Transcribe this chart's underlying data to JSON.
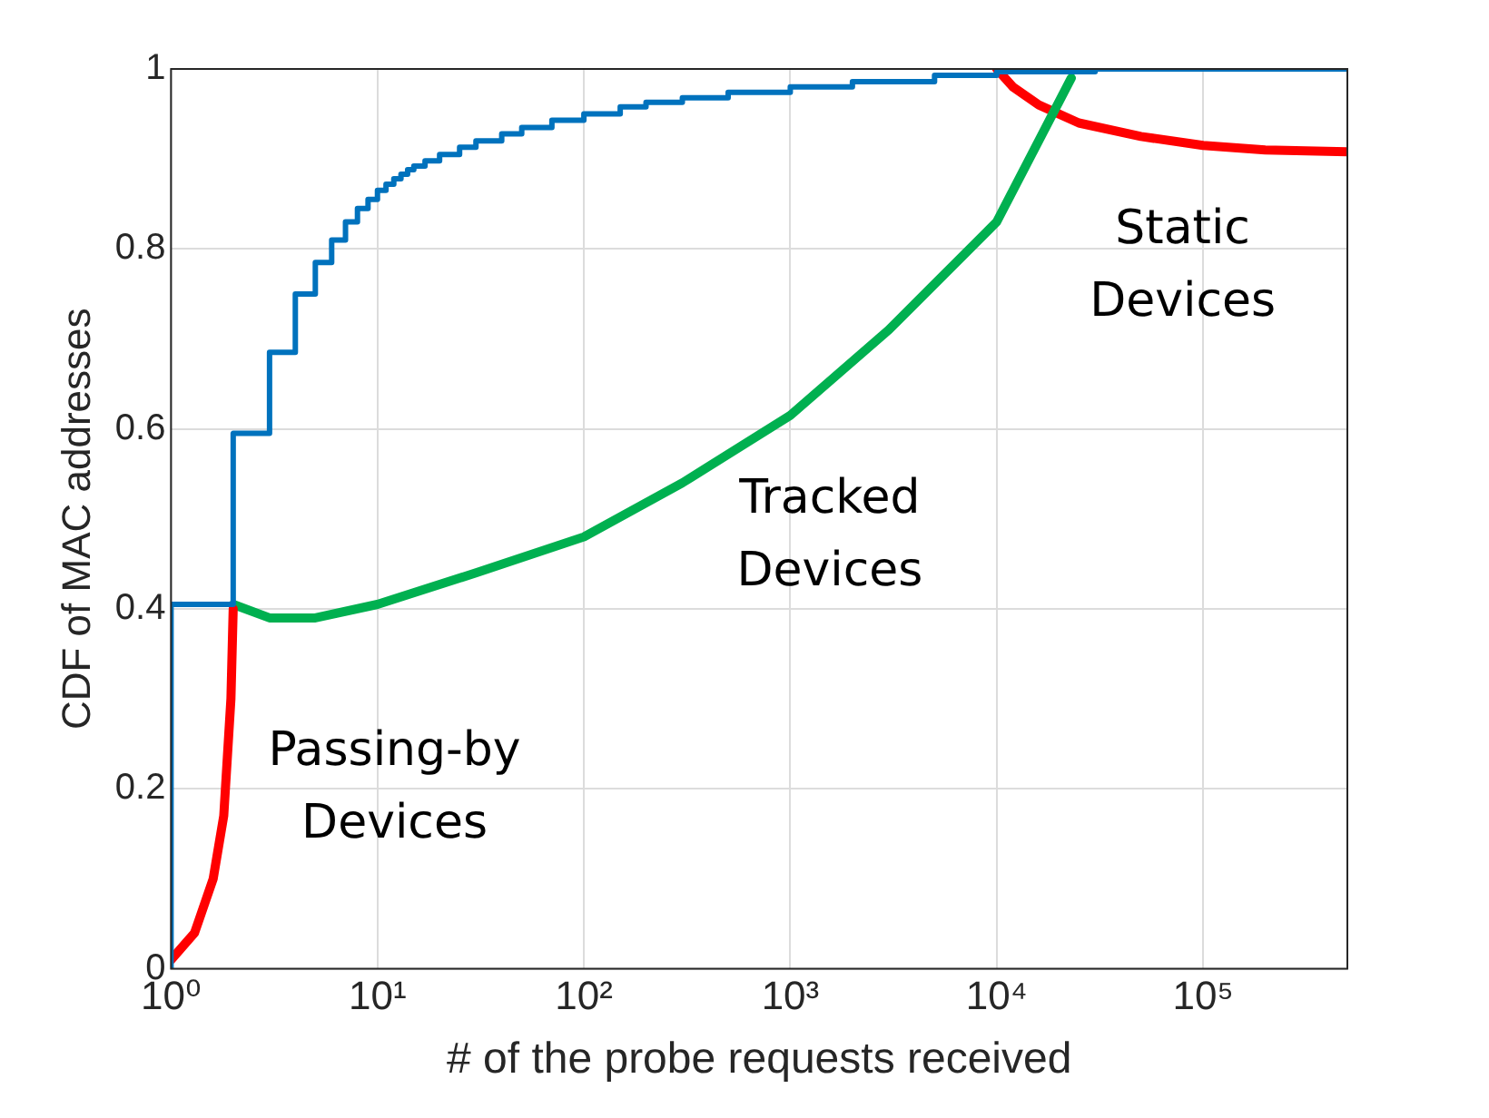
{
  "chart_data": {
    "type": "line",
    "xlabel": "# of the probe requests received",
    "ylabel": "CDF of MAC addresses",
    "log": "x",
    "grid": true,
    "legend": false,
    "marker": "none",
    "line_style": "solid",
    "xlim": [
      1,
      500000
    ],
    "xticks": [
      {
        "value": 1,
        "label": "10⁰"
      },
      {
        "value": 10,
        "label": "10¹"
      },
      {
        "value": 100,
        "label": "10²"
      },
      {
        "value": 1000,
        "label": "10³"
      },
      {
        "value": 10000,
        "label": "10⁴"
      },
      {
        "value": 100000,
        "label": "10⁵"
      }
    ],
    "ylim": [
      0,
      1
    ],
    "yticks": [
      0,
      0.2,
      0.4,
      0.6,
      0.8,
      1
    ],
    "series": [
      {
        "type": "step",
        "color": "#0072bd",
        "x": [
          1,
          1,
          2,
          3,
          4,
          5,
          6,
          7,
          8,
          9,
          10,
          11,
          12,
          13,
          14,
          15,
          17,
          20,
          25,
          30,
          40,
          50,
          70,
          100,
          150,
          200,
          300,
          500,
          1000,
          2000,
          5000,
          10000,
          30000,
          500000
        ],
        "values": [
          0,
          0.405,
          0.595,
          0.685,
          0.75,
          0.785,
          0.81,
          0.83,
          0.845,
          0.855,
          0.865,
          0.872,
          0.878,
          0.883,
          0.888,
          0.892,
          0.898,
          0.905,
          0.913,
          0.92,
          0.928,
          0.935,
          0.943,
          0.95,
          0.958,
          0.963,
          0.968,
          0.974,
          0.98,
          0.986,
          0.993,
          0.997,
          1,
          1
        ]
      },
      {
        "color": "#ff0000",
        "x": [
          1,
          1.3,
          1.6,
          1.8,
          1.95,
          2
        ],
        "values": [
          0.01,
          0.04,
          0.1,
          0.17,
          0.3,
          0.4
        ]
      },
      {
        "color": "#00b050",
        "x": [
          2,
          3,
          5,
          10,
          30,
          100,
          300,
          1000,
          3000,
          10000,
          23000
        ],
        "values": [
          0.405,
          0.39,
          0.39,
          0.405,
          0.44,
          0.48,
          0.54,
          0.615,
          0.71,
          0.83,
          0.99
        ]
      },
      {
        "color": "#ff0000",
        "x": [
          10000,
          12000,
          16000,
          25000,
          50000,
          100000,
          200000,
          500000
        ],
        "values": [
          1,
          0.98,
          0.96,
          0.94,
          0.925,
          0.915,
          0.91,
          0.908
        ]
      }
    ],
    "annotations": [
      "Passing-by Devices",
      "Tracked Devices",
      "Static Devices"
    ]
  }
}
